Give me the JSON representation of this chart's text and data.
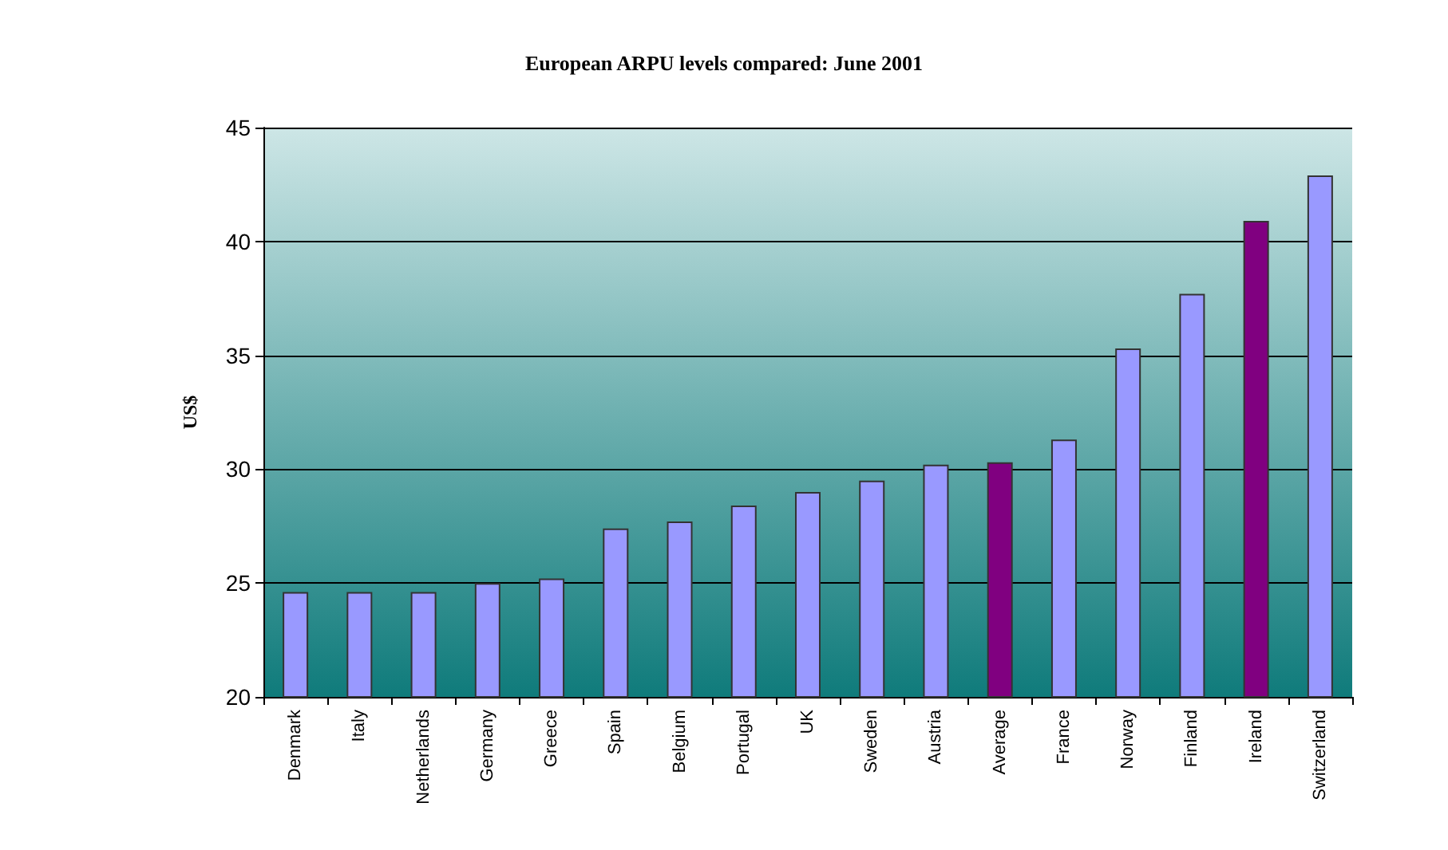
{
  "chart_data": {
    "type": "bar",
    "title": "European ARPU levels compared: June 2001",
    "ylabel": "US$",
    "categories": [
      "Denmark",
      "Italy",
      "Netherlands",
      "Germany",
      "Greece",
      "Spain",
      "Belgium",
      "Portugal",
      "UK",
      "Sweden",
      "Austria",
      "Average",
      "France",
      "Norway",
      "Finland",
      "Ireland",
      "Switzerland"
    ],
    "values": [
      24.6,
      24.6,
      24.6,
      25.0,
      25.2,
      27.4,
      27.7,
      28.4,
      29.0,
      29.5,
      30.2,
      30.3,
      31.3,
      35.3,
      37.7,
      40.9,
      42.9
    ],
    "colors": [
      "#9999ff",
      "#9999ff",
      "#9999ff",
      "#9999ff",
      "#9999ff",
      "#9999ff",
      "#9999ff",
      "#9999ff",
      "#9999ff",
      "#9999ff",
      "#9999ff",
      "#800080",
      "#9999ff",
      "#9999ff",
      "#9999ff",
      "#800080",
      "#9999ff"
    ],
    "ylim": [
      20,
      45
    ],
    "yticks": [
      20,
      25,
      30,
      35,
      40,
      45
    ],
    "grid": true
  }
}
